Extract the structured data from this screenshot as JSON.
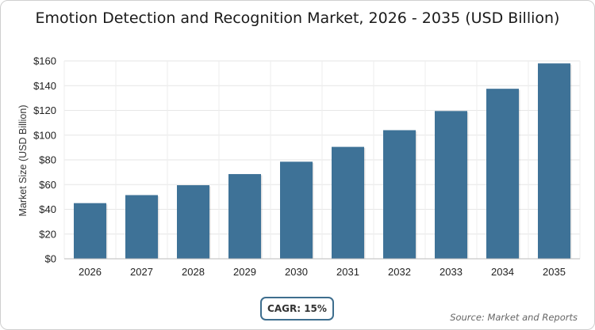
{
  "chart_data": {
    "type": "bar",
    "title": "Emotion Detection and Recognition Market, 2026 - 2035 (USD Billion)",
    "xlabel": "",
    "ylabel": "Market Size (USD Billion)",
    "categories": [
      "2026",
      "2027",
      "2028",
      "2029",
      "2030",
      "2031",
      "2032",
      "2033",
      "2034",
      "2035"
    ],
    "values": [
      45,
      51.5,
      59.5,
      68.5,
      78.5,
      90.5,
      104,
      119.5,
      137.5,
      158
    ],
    "ylim": [
      0,
      160
    ],
    "yticks": [
      0,
      20,
      40,
      60,
      80,
      100,
      120,
      140,
      160
    ],
    "ytick_labels": [
      "$0",
      "$20",
      "$40",
      "$60",
      "$80",
      "$100",
      "$120",
      "$140",
      "$160"
    ],
    "grid": true,
    "bar_color": "#3e7297"
  },
  "badge": {
    "label": "CAGR: 15%",
    "border_color": "#3e6e8e"
  },
  "source": "Source: Market and Reports"
}
